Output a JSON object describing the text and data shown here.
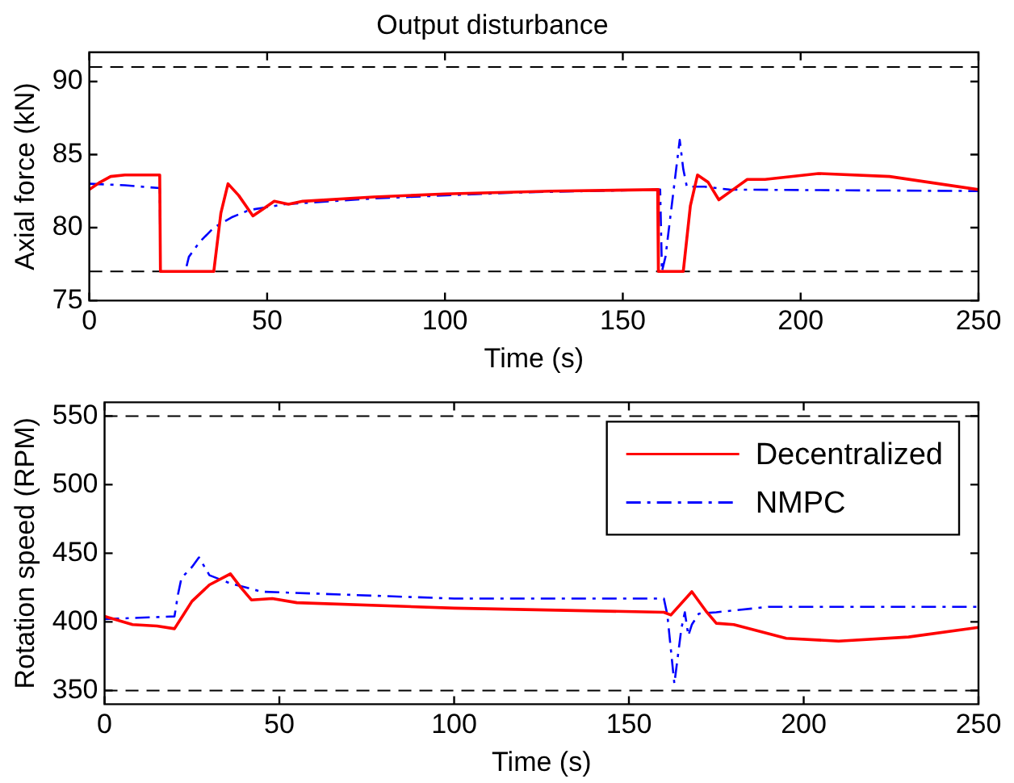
{
  "chart_data": [
    {
      "type": "line",
      "title": "Output disturbance",
      "xlabel": "Time (s)",
      "ylabel": "Axial force (kN)",
      "xlim": [
        0,
        250
      ],
      "xticks": [
        0,
        50,
        100,
        150,
        200,
        250
      ],
      "ylim": [
        75,
        92
      ],
      "yticks": [
        75,
        80,
        85,
        90
      ],
      "grid": false,
      "legend": false,
      "marker": "none",
      "ref_lines": [
        {
          "axis": "y",
          "value": 77,
          "color": "#000000",
          "line_style": "dashed"
        },
        {
          "axis": "y",
          "value": 91,
          "color": "#000000",
          "line_style": "dashed"
        }
      ],
      "series": [
        {
          "color": "#ff0000",
          "line_style": "solid",
          "x": [
            0,
            3,
            6,
            10,
            19.8,
            20,
            35,
            37,
            39,
            42,
            46,
            49,
            52,
            56,
            60,
            80,
            100,
            130,
            159.8,
            160,
            167,
            169,
            171,
            174,
            177,
            181,
            185,
            190,
            205,
            225,
            250
          ],
          "values": [
            82.6,
            83.1,
            83.5,
            83.6,
            83.6,
            77,
            77,
            81,
            83,
            82.2,
            80.8,
            81.3,
            81.8,
            81.6,
            81.8,
            82.1,
            82.3,
            82.5,
            82.6,
            77,
            77,
            81.5,
            83.6,
            83.1,
            81.9,
            82.6,
            83.3,
            83.3,
            83.7,
            83.5,
            82.6
          ]
        },
        {
          "color": "#0000ff",
          "line_style": "dashed",
          "x": [
            0,
            10,
            19.8,
            20,
            27,
            28,
            31,
            35,
            40,
            45,
            55,
            80,
            120,
            160.5,
            161,
            162,
            164,
            166,
            167,
            168,
            173,
            180,
            250
          ],
          "values": [
            83,
            82.9,
            82.7,
            77,
            77,
            78,
            79,
            80,
            80.7,
            81.2,
            81.6,
            82,
            82.4,
            82.6,
            77,
            78,
            82,
            86,
            84,
            82.8,
            82.8,
            82.6,
            82.5
          ]
        }
      ]
    },
    {
      "type": "line",
      "xlabel": "Time (s)",
      "ylabel": "Rotation speed (RPM)",
      "xlim": [
        0,
        250
      ],
      "xticks": [
        0,
        50,
        100,
        150,
        200,
        250
      ],
      "ylim": [
        340,
        560
      ],
      "yticks": [
        350,
        400,
        450,
        500,
        550
      ],
      "grid": false,
      "legend": "top right",
      "marker": "none",
      "ref_lines": [
        {
          "axis": "y",
          "value": 350,
          "color": "#000000",
          "line_style": "dashed"
        },
        {
          "axis": "y",
          "value": 550,
          "color": "#000000",
          "line_style": "dashed"
        }
      ],
      "series": [
        {
          "name": "Decentralized",
          "color": "#ff0000",
          "line_style": "solid",
          "x": [
            0,
            8,
            15,
            20,
            25,
            30,
            36,
            39,
            42,
            48,
            55,
            100,
            160,
            162,
            168,
            172,
            175,
            180,
            195,
            210,
            230,
            250
          ],
          "values": [
            404,
            398,
            397,
            395,
            415,
            427,
            435,
            425,
            416,
            417,
            414,
            410,
            407,
            405,
            422,
            408,
            399,
            398,
            388,
            386,
            389,
            396
          ]
        },
        {
          "name": "NMPC",
          "color": "#0000ff",
          "line_style": "dashed",
          "x": [
            0,
            10,
            20,
            21,
            22,
            25,
            27,
            30,
            36,
            45,
            100,
            160,
            161,
            163,
            165,
            166,
            167,
            168,
            170,
            175,
            190,
            250
          ],
          "values": [
            402,
            403,
            404,
            420,
            432,
            440,
            447,
            434,
            428,
            422,
            417,
            417,
            405,
            355,
            395,
            407,
            390,
            398,
            406,
            407,
            411,
            411
          ]
        }
      ]
    }
  ]
}
